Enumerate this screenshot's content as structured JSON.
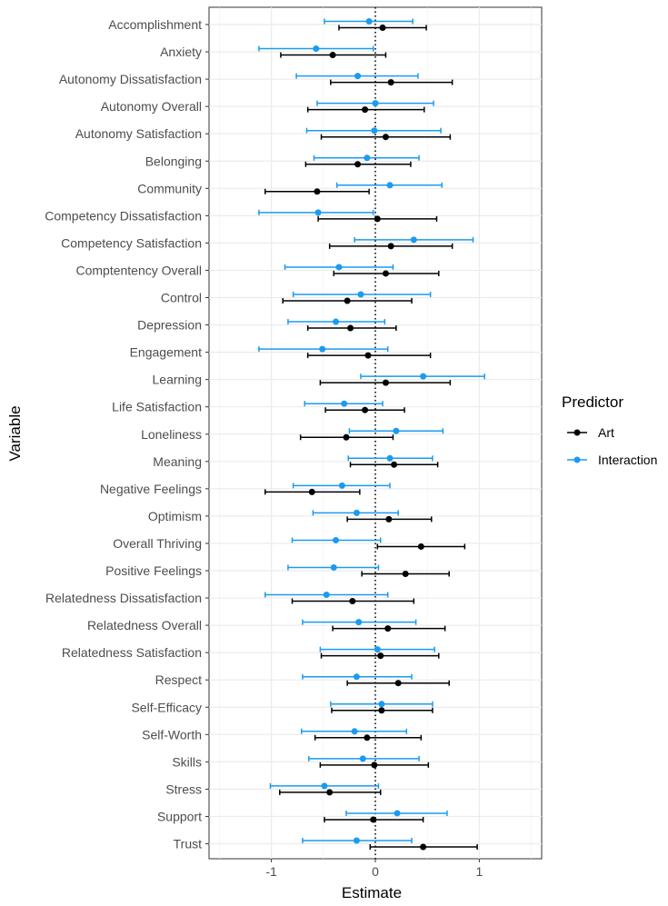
{
  "chart_data": {
    "type": "forest",
    "xlabel": "Estimate",
    "ylabel": "Variable",
    "xlim": [
      -1.6,
      1.6
    ],
    "x_ticks": [
      -1,
      0,
      1
    ],
    "x_tick_labels": [
      "-1",
      "0",
      "1"
    ],
    "reference_line": 0,
    "grid": true,
    "legend": {
      "title": "Predictor",
      "position": "right",
      "entries": [
        {
          "name": "Art",
          "color": "#000000"
        },
        {
          "name": "Interaction",
          "color": "#1a9bf0"
        }
      ]
    },
    "categories": [
      "Accomplishment",
      "Anxiety",
      "Autonomy Dissatisfaction",
      "Autonomy Overall",
      "Autonomy Satisfaction",
      "Belonging",
      "Community",
      "Competency Dissatisfaction",
      "Competency Satisfaction",
      "Comptentency Overall",
      "Control",
      "Depression",
      "Engagement",
      "Learning",
      "Life Satisfaction",
      "Loneliness",
      "Meaning",
      "Negative Feelings",
      "Optimism",
      "Overall Thriving",
      "Positive Feelings",
      "Relatedness Dissatisfaction",
      "Relatedness Overall",
      "Relatedness Satisfaction",
      "Respect",
      "Self-Efficacy",
      "Self-Worth",
      "Skills",
      "Stress",
      "Support",
      "Trust"
    ],
    "series": [
      {
        "name": "Art",
        "color": "#000000",
        "estimate": [
          0.07,
          -0.41,
          0.15,
          -0.1,
          0.1,
          -0.17,
          -0.56,
          0.02,
          0.15,
          0.1,
          -0.27,
          -0.24,
          -0.07,
          0.1,
          -0.1,
          -0.28,
          0.18,
          -0.61,
          0.13,
          0.44,
          0.29,
          -0.22,
          0.12,
          0.05,
          0.22,
          0.06,
          -0.08,
          -0.01,
          -0.44,
          -0.02,
          0.46
        ],
        "lower": [
          -0.35,
          -0.91,
          -0.43,
          -0.65,
          -0.52,
          -0.67,
          -1.06,
          -0.55,
          -0.44,
          -0.4,
          -0.89,
          -0.65,
          -0.65,
          -0.53,
          -0.48,
          -0.72,
          -0.24,
          -1.06,
          -0.27,
          0.02,
          -0.13,
          -0.8,
          -0.41,
          -0.52,
          -0.27,
          -0.42,
          -0.58,
          -0.53,
          -0.92,
          -0.49,
          -0.05
        ],
        "upper": [
          0.49,
          0.1,
          0.74,
          0.47,
          0.72,
          0.34,
          -0.06,
          0.59,
          0.74,
          0.61,
          0.35,
          0.2,
          0.53,
          0.72,
          0.28,
          0.17,
          0.6,
          -0.15,
          0.54,
          0.86,
          0.71,
          0.37,
          0.67,
          0.61,
          0.71,
          0.55,
          0.44,
          0.51,
          0.05,
          0.46,
          0.98
        ]
      },
      {
        "name": "Interaction",
        "color": "#1a9bf0",
        "estimate": [
          -0.06,
          -0.57,
          -0.17,
          0.0,
          -0.01,
          -0.08,
          0.14,
          -0.55,
          0.37,
          -0.35,
          -0.14,
          -0.38,
          -0.51,
          0.46,
          -0.3,
          0.2,
          0.14,
          -0.32,
          -0.18,
          -0.38,
          -0.4,
          -0.47,
          -0.16,
          0.02,
          -0.18,
          0.06,
          -0.2,
          -0.12,
          -0.49,
          0.21,
          -0.18
        ],
        "lower": [
          -0.49,
          -1.12,
          -0.76,
          -0.56,
          -0.66,
          -0.59,
          -0.37,
          -1.12,
          -0.2,
          -0.87,
          -0.79,
          -0.84,
          -1.12,
          -0.14,
          -0.68,
          -0.25,
          -0.26,
          -0.79,
          -0.6,
          -0.8,
          -0.84,
          -1.06,
          -0.7,
          -0.53,
          -0.7,
          -0.43,
          -0.71,
          -0.64,
          -1.01,
          -0.28,
          -0.7
        ],
        "upper": [
          0.36,
          -0.02,
          0.41,
          0.56,
          0.63,
          0.42,
          0.64,
          -0.02,
          0.94,
          0.17,
          0.53,
          0.09,
          0.12,
          1.05,
          0.07,
          0.65,
          0.55,
          0.14,
          0.22,
          0.05,
          0.03,
          0.12,
          0.39,
          0.57,
          0.35,
          0.55,
          0.3,
          0.42,
          0.03,
          0.69,
          0.35
        ]
      }
    ]
  }
}
